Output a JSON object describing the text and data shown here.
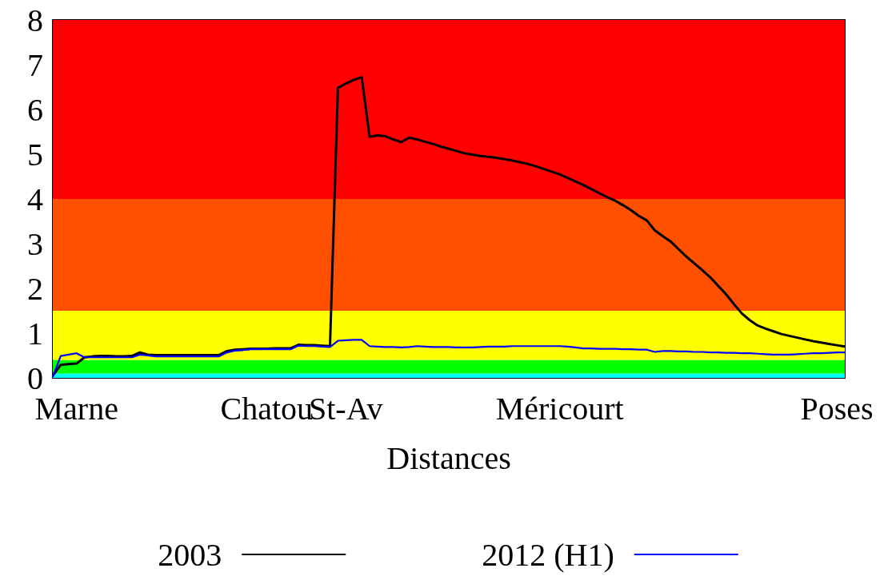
{
  "chart_data": {
    "type": "line",
    "xlabel": "Distances",
    "ylim": [
      0,
      8
    ],
    "categories": [
      null,
      null,
      null,
      "Marne",
      null,
      null,
      null,
      null,
      null,
      null,
      null,
      null,
      null,
      null,
      null,
      null,
      null,
      null,
      null,
      null,
      null,
      null,
      null,
      null,
      null,
      null,
      null,
      "Chatou",
      null,
      null,
      null,
      null,
      null,
      null,
      null,
      null,
      null,
      "St-Av",
      null,
      null,
      null,
      null,
      null,
      null,
      null,
      null,
      null,
      null,
      null,
      null,
      null,
      null,
      null,
      null,
      null,
      null,
      null,
      null,
      null,
      null,
      null,
      null,
      null,
      null,
      "Méricourt",
      null,
      null,
      null,
      null,
      null,
      null,
      null,
      null,
      null,
      null,
      null,
      null,
      null,
      null,
      null,
      null,
      null,
      null,
      null,
      null,
      null,
      null,
      null,
      null,
      null,
      null,
      null,
      null,
      null,
      null,
      null,
      null,
      null,
      null,
      "Poses",
      null
    ],
    "yticks": [
      0,
      1,
      2,
      3,
      4,
      5,
      6,
      7,
      8
    ],
    "bands": [
      {
        "axis": "y",
        "from": 0,
        "to": 0.1,
        "label": null,
        "color": "#00ffff"
      },
      {
        "axis": "y",
        "from": 0.1,
        "to": 0.4,
        "label": null,
        "color": "#00ff00"
      },
      {
        "axis": "y",
        "from": 0.4,
        "to": 1.5,
        "label": null,
        "color": "#ffff00"
      },
      {
        "axis": "y",
        "from": 1.5,
        "to": 4,
        "label": null,
        "color": "#ff5000"
      },
      {
        "axis": "y",
        "from": 4,
        "to": 8,
        "label": null,
        "color": "#ff0000"
      }
    ],
    "series": [
      {
        "name": "2003",
        "color": "#000000",
        "line_style": "solid",
        "values": [
          0.05,
          0.29,
          0.31,
          0.32,
          0.46,
          0.48,
          0.49,
          0.49,
          0.48,
          0.48,
          0.49,
          0.57,
          0.52,
          0.51,
          0.51,
          0.51,
          0.51,
          0.51,
          0.51,
          0.51,
          0.51,
          0.51,
          0.6,
          0.63,
          0.64,
          0.65,
          0.65,
          0.65,
          0.66,
          0.66,
          0.66,
          0.74,
          0.73,
          0.73,
          0.72,
          0.71,
          6.48,
          6.58,
          6.66,
          6.72,
          5.39,
          5.42,
          5.4,
          5.33,
          5.27,
          5.37,
          5.33,
          5.28,
          5.23,
          5.17,
          5.12,
          5.07,
          5.02,
          4.99,
          4.96,
          4.94,
          4.92,
          4.89,
          4.86,
          4.82,
          4.78,
          4.73,
          4.67,
          4.61,
          4.55,
          4.47,
          4.39,
          4.31,
          4.22,
          4.13,
          4.04,
          3.96,
          3.86,
          3.75,
          3.62,
          3.52,
          3.3,
          3.17,
          3.05,
          2.88,
          2.71,
          2.56,
          2.41,
          2.25,
          2.06,
          1.87,
          1.65,
          1.44,
          1.29,
          1.17,
          1.1,
          1.04,
          0.98,
          0.94,
          0.9,
          0.86,
          0.82,
          0.79,
          0.76,
          0.73,
          0.7
        ]
      },
      {
        "name": "2012 (H1)",
        "color": "#0000ff",
        "line_style": "solid",
        "values": [
          0.02,
          0.49,
          0.52,
          0.55,
          0.46,
          0.46,
          0.46,
          0.46,
          0.46,
          0.46,
          0.46,
          0.52,
          0.5,
          0.48,
          0.48,
          0.48,
          0.48,
          0.48,
          0.48,
          0.48,
          0.48,
          0.48,
          0.57,
          0.61,
          0.62,
          0.64,
          0.64,
          0.64,
          0.64,
          0.64,
          0.64,
          0.72,
          0.71,
          0.71,
          0.7,
          0.69,
          0.83,
          0.84,
          0.85,
          0.85,
          0.71,
          0.7,
          0.69,
          0.69,
          0.68,
          0.69,
          0.71,
          0.7,
          0.69,
          0.69,
          0.69,
          0.68,
          0.68,
          0.68,
          0.69,
          0.7,
          0.7,
          0.7,
          0.71,
          0.71,
          0.71,
          0.71,
          0.71,
          0.71,
          0.71,
          0.7,
          0.68,
          0.66,
          0.66,
          0.65,
          0.65,
          0.65,
          0.64,
          0.64,
          0.63,
          0.63,
          0.58,
          0.6,
          0.6,
          0.59,
          0.59,
          0.58,
          0.58,
          0.57,
          0.57,
          0.56,
          0.56,
          0.55,
          0.55,
          0.54,
          0.53,
          0.52,
          0.52,
          0.52,
          0.53,
          0.54,
          0.55,
          0.55,
          0.56,
          0.57,
          0.57
        ]
      }
    ],
    "legend": "bottom",
    "grid": false,
    "marker": "none"
  }
}
